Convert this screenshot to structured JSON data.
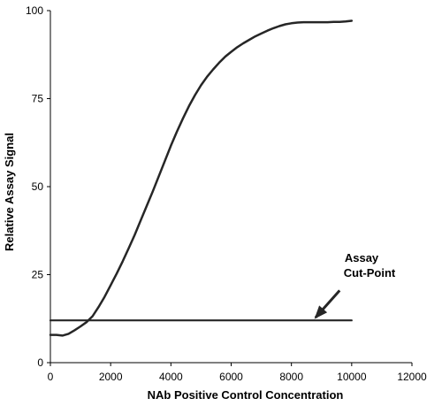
{
  "chart_data": {
    "type": "line",
    "title": "",
    "xlabel": "NAb Positive Control Concentration",
    "ylabel": "Relative Assay Signal",
    "xlim": [
      0,
      12000
    ],
    "ylim": [
      0,
      100
    ],
    "xticks": [
      0,
      2000,
      4000,
      6000,
      8000,
      10000,
      12000
    ],
    "yticks": [
      0,
      25,
      50,
      75,
      100
    ],
    "xtick_labels": [
      "0",
      "2000",
      "4000",
      "6000",
      "8000",
      "10000",
      "12000"
    ],
    "ytick_labels": [
      "0",
      "25",
      "50",
      "75",
      "100"
    ],
    "grid": false,
    "legend": "none",
    "series": [
      {
        "kind": "curve",
        "color": "#262626",
        "x": [
          0,
          200,
          400,
          600,
          800,
          1000,
          1200,
          1400,
          1600,
          1800,
          2000,
          2200,
          2400,
          2600,
          2800,
          3000,
          3200,
          3400,
          3600,
          3800,
          4000,
          4200,
          4400,
          4600,
          4800,
          5000,
          5200,
          5400,
          5600,
          5800,
          6000,
          6200,
          6400,
          6600,
          6800,
          7000,
          7200,
          7400,
          7600,
          7800,
          8000,
          8200,
          8400,
          8600,
          8800,
          9000,
          9200,
          9400,
          9600,
          9800,
          10000
        ],
        "y": [
          7.9,
          7.9,
          7.7,
          8.2,
          9.2,
          10.3,
          11.5,
          13.2,
          15.8,
          18.7,
          22.0,
          25.3,
          28.8,
          32.5,
          36.3,
          40.5,
          44.6,
          48.7,
          53.0,
          57.3,
          61.6,
          65.6,
          69.4,
          72.9,
          76.0,
          78.8,
          81.2,
          83.3,
          85.2,
          86.9,
          88.3,
          89.6,
          90.7,
          91.7,
          92.7,
          93.5,
          94.3,
          95.0,
          95.6,
          96.1,
          96.4,
          96.6,
          96.7,
          96.7,
          96.7,
          96.7,
          96.7,
          96.8,
          96.8,
          96.9,
          97.1
        ]
      },
      {
        "kind": "cut-point",
        "color": "#262626",
        "x": [
          0,
          10000
        ],
        "y": [
          12,
          12
        ]
      }
    ],
    "annotations": [
      {
        "lines": [
          "Assay",
          "Cut-Point"
        ],
        "arrow_from": [
          9600,
          20.5
        ],
        "arrow_to": [
          8800,
          12.8
        ]
      }
    ]
  }
}
